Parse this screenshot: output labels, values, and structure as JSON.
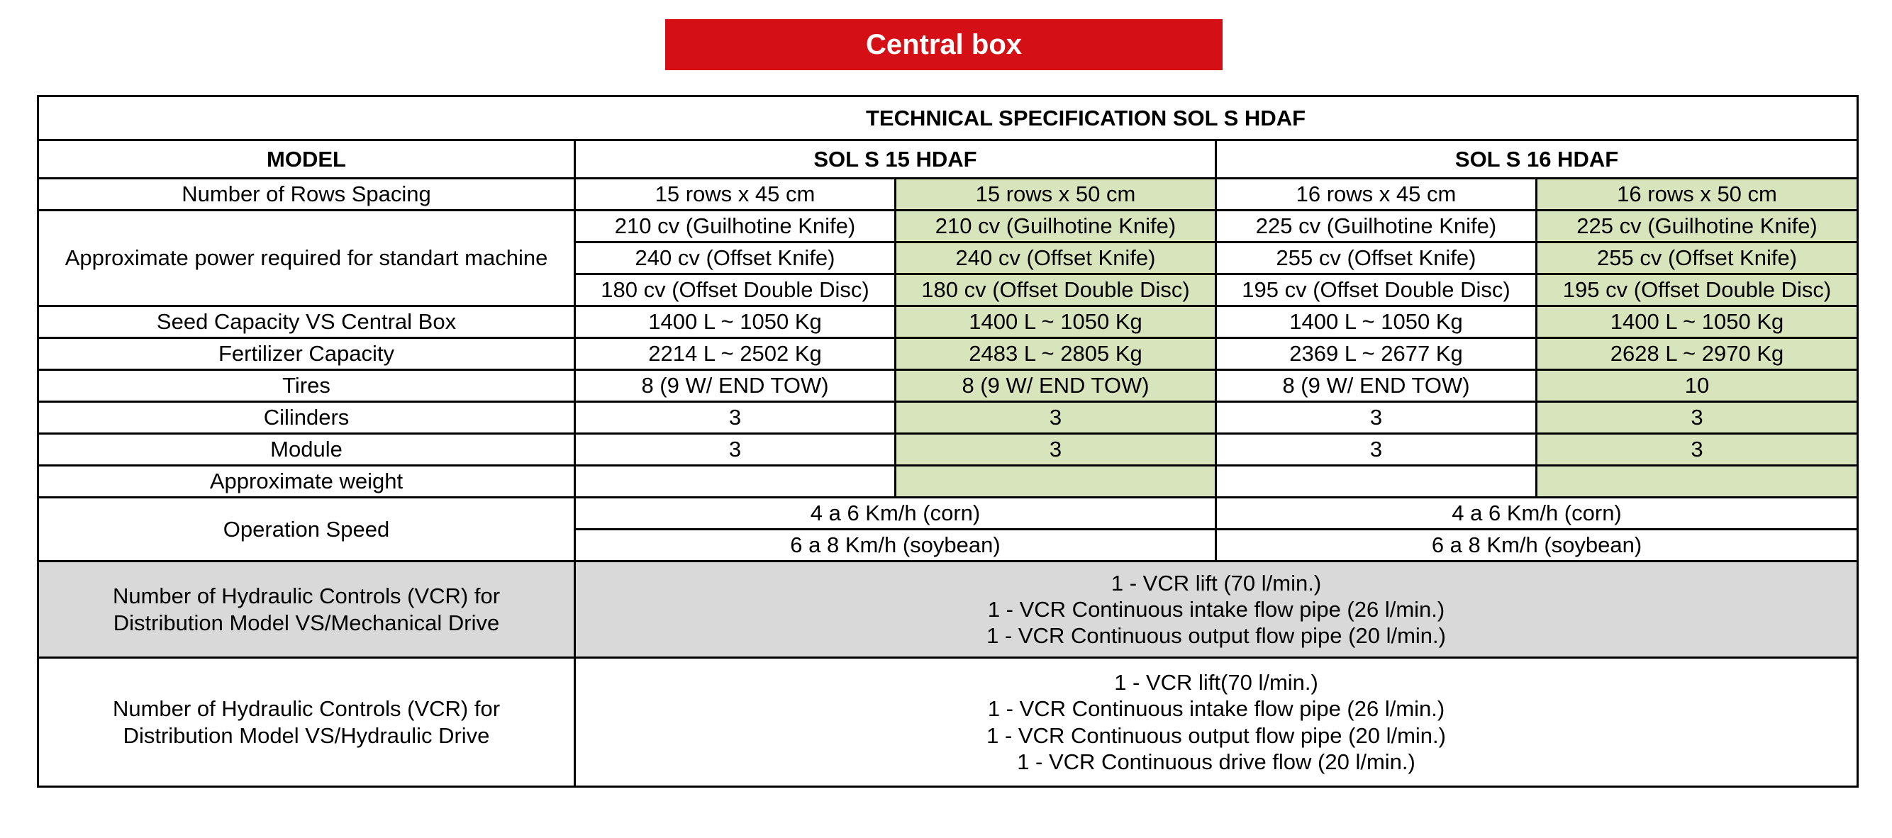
{
  "banner": "Central box",
  "title": "TECHNICAL SPECIFICATION SOL S HDAF",
  "header": {
    "model_label": "MODEL",
    "model_a": "SOL S 15 HDAF",
    "model_b": "SOL S 16 HDAF"
  },
  "rows": {
    "spacing": {
      "label": "Number of Rows Spacing",
      "values": [
        "15 rows x 45 cm",
        "15 rows x 50 cm",
        "16 rows x 45 cm",
        "16 rows x 50 cm"
      ]
    },
    "power": {
      "label": "Approximate power required for standart machine",
      "guilhotine": [
        "210 cv  (Guilhotine Knife)",
        "210 cv (Guilhotine Knife)",
        "225 cv (Guilhotine Knife)",
        "225 cv (Guilhotine Knife)"
      ],
      "offset": [
        "240 cv (Offset Knife)",
        "240 cv (Offset Knife)",
        "255 cv (Offset Knife)",
        "255 cv (Offset Knife)"
      ],
      "disc": [
        "180 cv (Offset Double Disc)",
        "180 cv (Offset Double Disc)",
        "195 cv (Offset Double Disc)",
        "195 cv (Offset Double Disc)"
      ]
    },
    "seed": {
      "label": "Seed Capacity VS Central Box",
      "values": [
        "1400 L ~ 1050 Kg",
        "1400 L ~ 1050 Kg",
        "1400 L ~ 1050 Kg",
        "1400 L ~ 1050 Kg"
      ]
    },
    "fertilizer": {
      "label": "Fertilizer Capacity",
      "values": [
        "2214 L ~ 2502 Kg",
        "2483 L ~ 2805 Kg",
        "2369 L ~ 2677 Kg",
        "2628 L ~ 2970 Kg"
      ]
    },
    "tires": {
      "label": "Tires",
      "values": [
        "8 (9 W/ END TOW)",
        "8 (9 W/ END TOW)",
        "8 (9 W/ END TOW)",
        "10"
      ]
    },
    "cilinders": {
      "label": "Cilinders",
      "values": [
        "3",
        "3",
        "3",
        "3"
      ]
    },
    "module": {
      "label": "Module",
      "values": [
        "3",
        "3",
        "3",
        "3"
      ]
    },
    "weight": {
      "label": "Approximate weight",
      "values": [
        "",
        "",
        "",
        ""
      ]
    },
    "speed": {
      "label": "Operation Speed",
      "corn": [
        "4 a 6 Km/h (corn)",
        "4 a 6 Km/h (corn)"
      ],
      "soybean": [
        "6 a 8 Km/h (soybean)",
        "6 a 8 Km/h (soybean)"
      ]
    },
    "hydraulic_mechanical": {
      "label_line1": "Number of Hydraulic Controls (VCR) for",
      "label_line2": "Distribution Model VS/Mechanical Drive",
      "lines": [
        "1 - VCR lift (70 l/min.)",
        "1 - VCR Continuous intake flow pipe (26 l/min.)",
        "1 - VCR Continuous output flow pipe (20 l/min.)"
      ]
    },
    "hydraulic_hydraulic": {
      "label_line1": "Number of Hydraulic Controls (VCR) for",
      "label_line2": "Distribution Model VS/Hydraulic Drive",
      "lines": [
        "1 - VCR lift(70 l/min.)",
        "1 - VCR Continuous intake flow pipe (26 l/min.)",
        "1 - VCR Continuous output flow pipe (20 l/min.)",
        "1 - VCR  Continuous drive flow (20 l/min.)"
      ]
    }
  }
}
